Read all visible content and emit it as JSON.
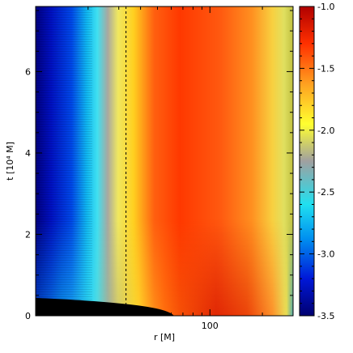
{
  "chart_data": {
    "type": "heatmap",
    "xlabel": "r [M]",
    "ylabel": "t [10⁴ M]",
    "x_scale": "log",
    "xlim": [
      10,
      300
    ],
    "ylim": [
      0,
      7.6
    ],
    "x_ticks": [
      {
        "value": 100,
        "label": "100"
      }
    ],
    "y_ticks": [
      {
        "value": 0,
        "label": "0"
      },
      {
        "value": 2,
        "label": "2"
      },
      {
        "value": 4,
        "label": "4"
      },
      {
        "value": 6,
        "label": "6"
      }
    ],
    "dashed_line_r": 33,
    "colorbar": {
      "range": [
        -3.5,
        -1.0
      ],
      "ticks": [
        {
          "value": -1.0,
          "label": "-1.0"
        },
        {
          "value": -1.5,
          "label": "-1.5"
        },
        {
          "value": -2.0,
          "label": "-2.0"
        },
        {
          "value": -2.5,
          "label": "-2.5"
        },
        {
          "value": -3.0,
          "label": "-3.0"
        },
        {
          "value": -3.5,
          "label": "-3.5"
        }
      ],
      "colors": [
        "#000070",
        "#0018d8",
        "#0090f0",
        "#20e0f0",
        "#a0a0a0",
        "#ffff30",
        "#ffa020",
        "#ff3000",
        "#b00000"
      ]
    },
    "regions": [
      {
        "r_range": [
          10,
          20
        ],
        "level": -3.1
      },
      {
        "r_range": [
          20,
          28
        ],
        "level": -2.3
      },
      {
        "r_range": [
          28,
          40
        ],
        "level": -1.9
      },
      {
        "r_range": [
          40,
          120
        ],
        "level": -1.4
      },
      {
        "r_range": [
          120,
          240
        ],
        "level": -1.6
      },
      {
        "r_range": [
          240,
          300
        ],
        "level": -2.2
      }
    ]
  }
}
